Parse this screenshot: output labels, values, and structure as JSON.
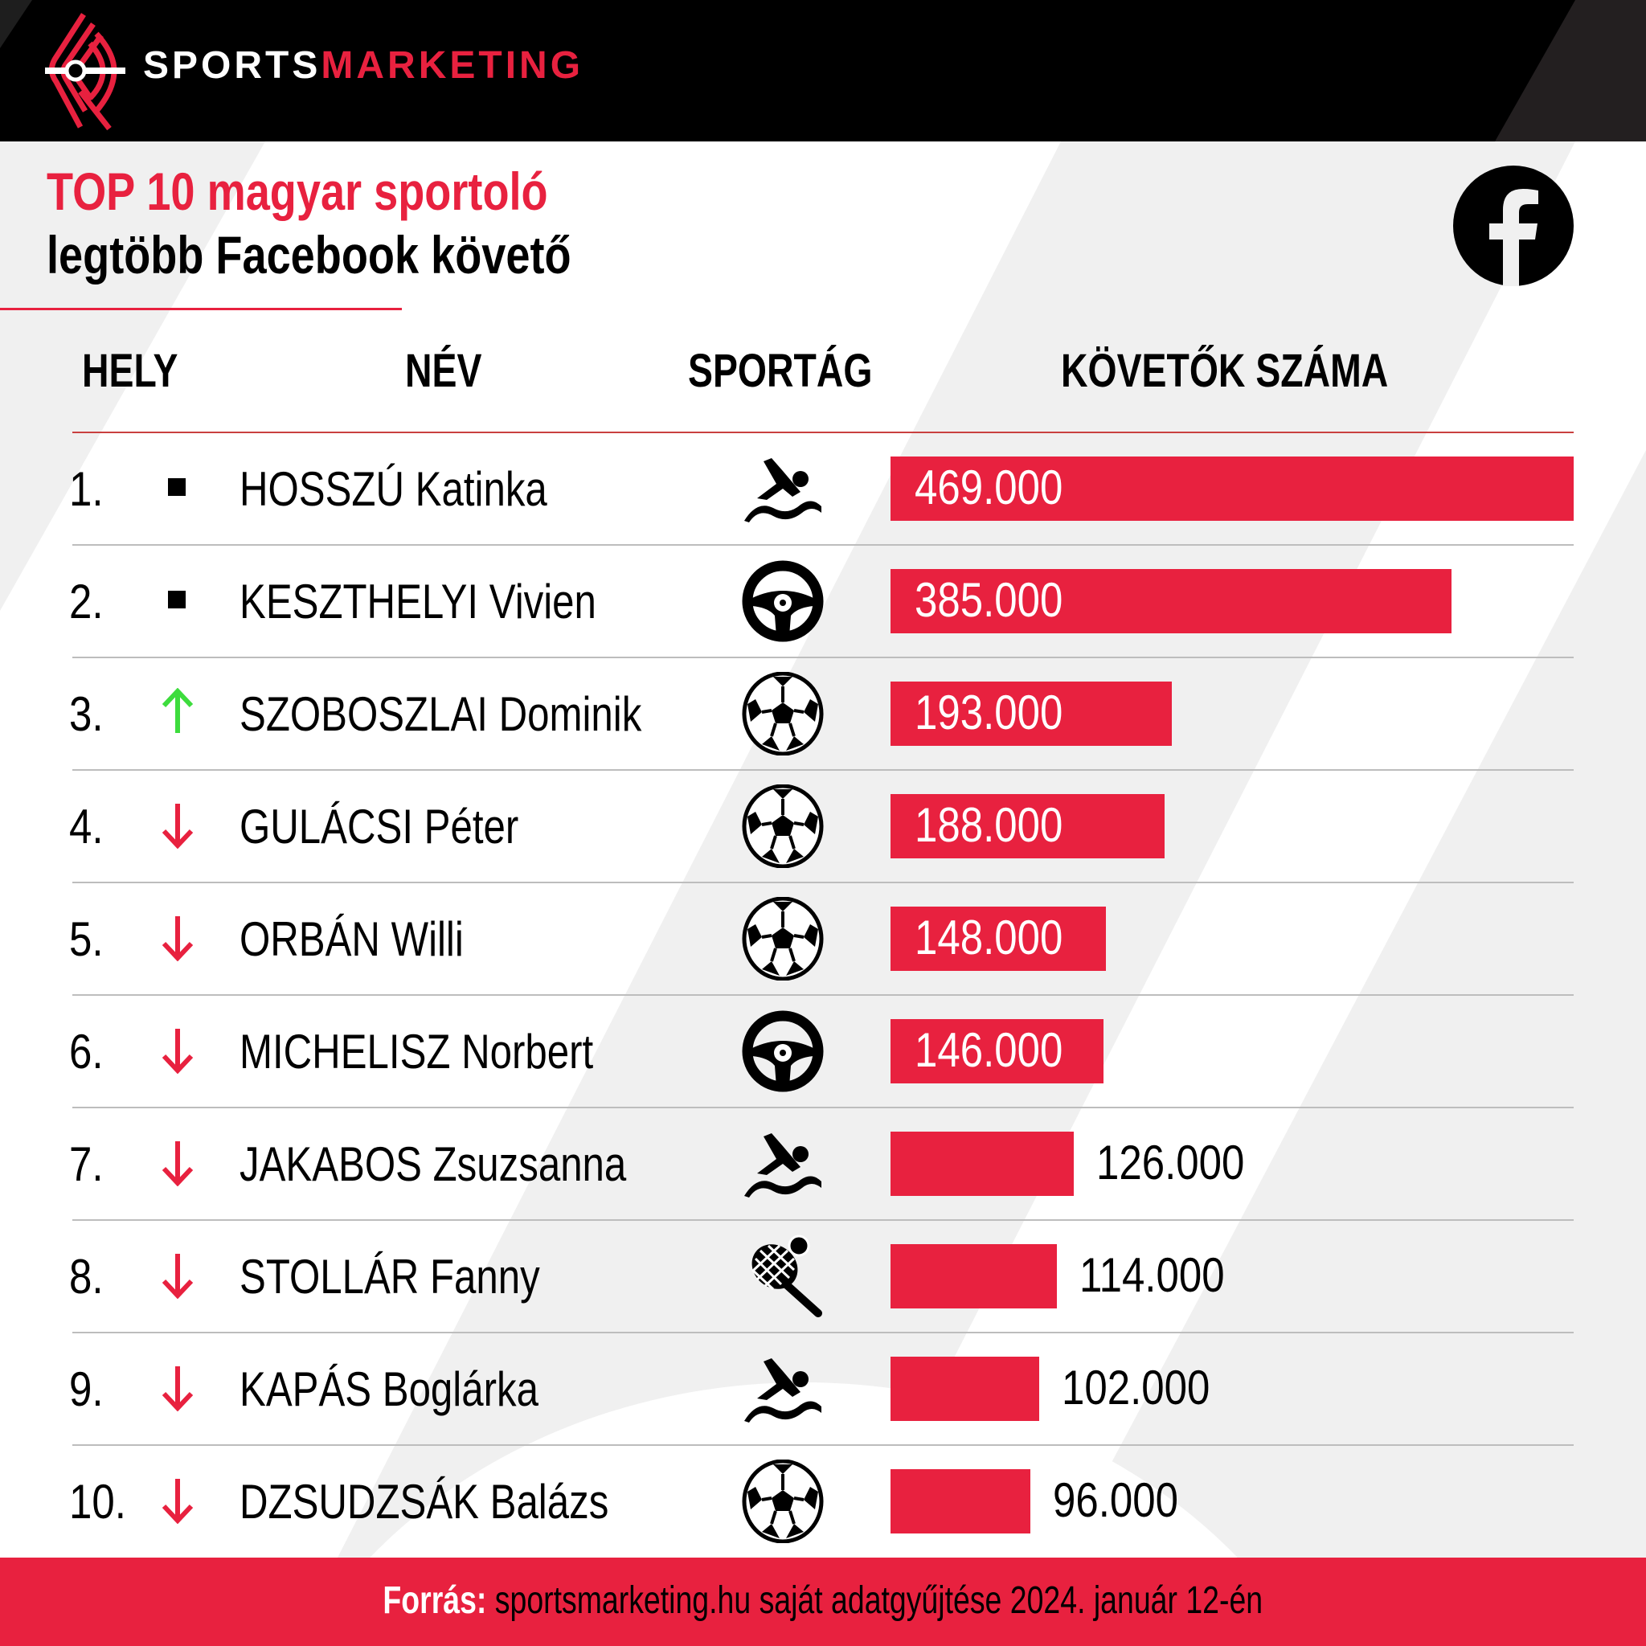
{
  "brand": {
    "part1": "SPORTS",
    "part2": "MARKETING"
  },
  "title": {
    "line1": "TOP 10 magyar sportoló",
    "line2": "legtöbb Facebook követő"
  },
  "platform_icon": "facebook-icon",
  "columns": {
    "rank": "HELY",
    "name": "NÉV",
    "sport": "SPORTÁG",
    "followers": "KÖVETŐK SZÁMA"
  },
  "rows": [
    {
      "rank": "1.",
      "trend": "same",
      "name": "HOSSZÚ Katinka",
      "sport": "swimming",
      "value": 469000,
      "label": "469.000"
    },
    {
      "rank": "2.",
      "trend": "same",
      "name": "KESZTHELYI Vivien",
      "sport": "motorsport",
      "value": 385000,
      "label": "385.000"
    },
    {
      "rank": "3.",
      "trend": "up",
      "name": "SZOBOSZLAI Dominik",
      "sport": "football",
      "value": 193000,
      "label": "193.000"
    },
    {
      "rank": "4.",
      "trend": "down",
      "name": "GULÁCSI Péter",
      "sport": "football",
      "value": 188000,
      "label": "188.000"
    },
    {
      "rank": "5.",
      "trend": "down",
      "name": "ORBÁN Willi",
      "sport": "football",
      "value": 148000,
      "label": "148.000"
    },
    {
      "rank": "6.",
      "trend": "down",
      "name": "MICHELISZ Norbert",
      "sport": "motorsport",
      "value": 146000,
      "label": "146.000"
    },
    {
      "rank": "7.",
      "trend": "down",
      "name": "JAKABOS Zsuzsanna",
      "sport": "swimming",
      "value": 126000,
      "label": "126.000"
    },
    {
      "rank": "8.",
      "trend": "down",
      "name": "STOLLÁR Fanny",
      "sport": "tennis",
      "value": 114000,
      "label": "114.000"
    },
    {
      "rank": "9.",
      "trend": "down",
      "name": "KAPÁS Boglárka",
      "sport": "swimming",
      "value": 102000,
      "label": "102.000"
    },
    {
      "rank": "10.",
      "trend": "down",
      "name": "DZSUDZSÁK Balázs",
      "sport": "football",
      "value": 96000,
      "label": "96.000"
    }
  ],
  "footer": {
    "label": "Forrás:",
    "source": " sportsmarketing.hu saját adatgyűjtése 2024. január 12-én"
  },
  "colors": {
    "accent": "#e8213f",
    "up": "#3ddc3d",
    "header_bg": "#000000"
  },
  "chart_data": {
    "type": "bar",
    "orientation": "horizontal",
    "title": "TOP 10 magyar sportoló legtöbb Facebook követő",
    "categories": [
      "HOSSZÚ Katinka",
      "KESZTHELYI Vivien",
      "SZOBOSZLAI Dominik",
      "GULÁCSI Péter",
      "ORBÁN Willi",
      "MICHELISZ Norbert",
      "JAKABOS Zsuzsanna",
      "STOLLÁR Fanny",
      "KAPÁS Boglárka",
      "DZSUDZSÁK Balázs"
    ],
    "values": [
      469000,
      385000,
      193000,
      188000,
      148000,
      146000,
      126000,
      114000,
      102000,
      96000
    ],
    "xlabel": "KÖVETŐK SZÁMA",
    "ylabel": "NÉV",
    "grid": false,
    "legend": null
  }
}
